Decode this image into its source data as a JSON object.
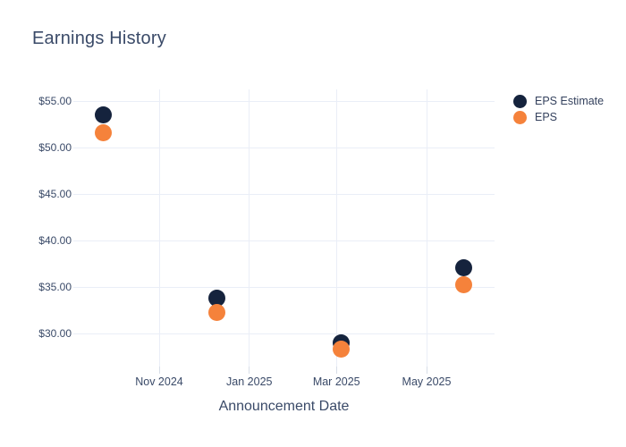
{
  "header": {
    "title": "Earnings History"
  },
  "colors": {
    "estimate": "#15233d",
    "eps": "#f5823b",
    "grid": "#eaeef7",
    "tick_mark": "#d8dee8",
    "text": "#3a4a68",
    "background": "#ffffff"
  },
  "legend": {
    "items": [
      {
        "label": "EPS Estimate",
        "series_index": 0
      },
      {
        "label": "EPS",
        "series_index": 1
      }
    ],
    "position": "right-top-outside"
  },
  "chart_data": {
    "type": "scatter",
    "title": "Earnings History",
    "xlabel": "Announcement Date",
    "ylabel": "",
    "grid": true,
    "x_tick_labels": [
      "Nov 2024",
      "Jan 2025",
      "Mar 2025",
      "May 2025"
    ],
    "x_tick_dates": [
      "2024-11-01",
      "2025-01-01",
      "2025-03-01",
      "2025-05-01"
    ],
    "y_tick_labels": [
      "$55.00",
      "$50.00",
      "$45.00",
      "$40.00",
      "$35.00",
      "$30.00"
    ],
    "y_tick_values": [
      55,
      50,
      45,
      40,
      35,
      30
    ],
    "ylim": [
      26.4,
      56.3
    ],
    "xlim_dates": [
      "2024-09-06",
      "2025-06-17"
    ],
    "marker_diameter_px": 19,
    "series": [
      {
        "name": "EPS Estimate",
        "color": "#15233d",
        "points": [
          {
            "date": "2024-09-24",
            "value": 53.5
          },
          {
            "date": "2024-12-10",
            "value": 33.8
          },
          {
            "date": "2025-03-04",
            "value": 29.0
          },
          {
            "date": "2025-05-26",
            "value": 37.1
          }
        ]
      },
      {
        "name": "EPS",
        "color": "#f5823b",
        "points": [
          {
            "date": "2024-09-24",
            "value": 51.6
          },
          {
            "date": "2024-12-10",
            "value": 32.3
          },
          {
            "date": "2025-03-04",
            "value": 28.3
          },
          {
            "date": "2025-05-26",
            "value": 35.2
          }
        ]
      }
    ]
  }
}
